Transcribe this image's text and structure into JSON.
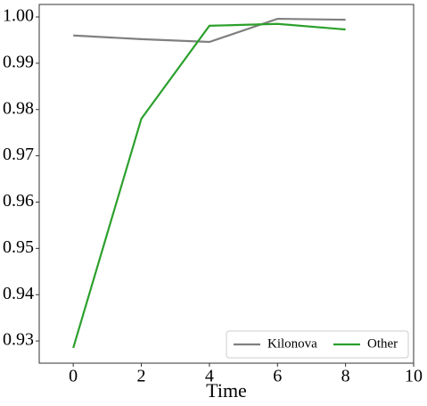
{
  "chart_data": {
    "type": "line",
    "x_label": "Time",
    "x": [
      0,
      2,
      4,
      6,
      8
    ],
    "series": [
      {
        "name": "Kilonova",
        "color": "#808080",
        "values": [
          0.996,
          0.9952,
          0.9946,
          0.9996,
          0.9994
        ]
      },
      {
        "name": "Other",
        "color": "#2ca02c",
        "values": [
          0.9285,
          0.978,
          0.9981,
          0.9985,
          0.9973
        ]
      }
    ],
    "xlim": [
      -1,
      10
    ],
    "xticks": [
      0,
      2,
      4,
      6,
      8,
      10
    ],
    "ylim": [
      0.9252,
      1.0027
    ],
    "yticks": [
      0.93,
      0.94,
      0.95,
      0.96,
      0.97,
      0.98,
      0.99,
      {
        "value": 1,
        "label": "1.00"
      }
    ],
    "legend": "lower right",
    "grid": false
  }
}
